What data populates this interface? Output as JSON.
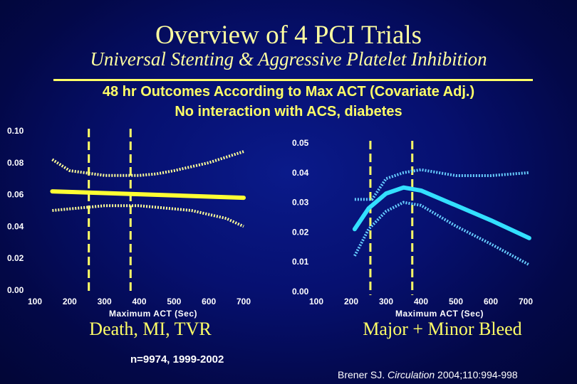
{
  "title": "Overview of 4 PCI Trials",
  "subtitle": "Universal Stenting & Aggressive Platelet Inhibition",
  "header_line1": "48 hr Outcomes According to Max ACT (Covariate Adj.)",
  "header_line2": "No interaction with ACS, diabetes",
  "footnote": "n=9974, 1999-2002",
  "citation": {
    "pre": "Brener SJ. ",
    "journal": "Circulation",
    "post": " 2004;110:994-998"
  },
  "colors": {
    "title": "#ffffa0",
    "heading": "#ffff66",
    "left_estimate": "#ffff33",
    "left_ci": "#ffff99",
    "right_estimate": "#33e0ff",
    "right_ci": "#66ccff",
    "reference_line": "#ffff66"
  },
  "chart_data": [
    {
      "type": "line",
      "caption": "Death, MI, TVR",
      "xlabel": "Maximum ACT (Sec)",
      "ylabel": "",
      "xlim": [
        100,
        700
      ],
      "ylim": [
        0,
        0.1
      ],
      "x_ticks": [
        "100",
        "200",
        "300",
        "400",
        "500",
        "600",
        "700"
      ],
      "y_ticks": [
        "0.00",
        "0.02",
        "0.04",
        "0.06",
        "0.08",
        "0.10"
      ],
      "reference_lines_x": [
        255,
        375
      ],
      "series": [
        {
          "role": "estimate",
          "x": [
            150,
            700
          ],
          "y": [
            0.062,
            0.058
          ]
        },
        {
          "role": "upper_ci",
          "x": [
            150,
            200,
            300,
            400,
            450,
            500,
            600,
            700
          ],
          "y": [
            0.082,
            0.075,
            0.072,
            0.072,
            0.073,
            0.075,
            0.08,
            0.087
          ]
        },
        {
          "role": "lower_ci",
          "x": [
            150,
            250,
            300,
            400,
            450,
            550,
            650,
            700
          ],
          "y": [
            0.05,
            0.052,
            0.053,
            0.053,
            0.052,
            0.05,
            0.045,
            0.04
          ]
        }
      ]
    },
    {
      "type": "line",
      "caption": "Major + Minor Bleed",
      "xlabel": "Maximum ACT (Sec)",
      "ylabel": "",
      "xlim": [
        100,
        700
      ],
      "ylim": [
        0,
        0.05
      ],
      "x_ticks": [
        "100",
        "200",
        "300",
        "400",
        "500",
        "600",
        "700"
      ],
      "y_ticks": [
        "0.00",
        "0.01",
        "0.02",
        "0.03",
        "0.04",
        "0.05"
      ],
      "reference_lines_x": [
        255,
        375
      ],
      "series": [
        {
          "role": "estimate",
          "x": [
            210,
            250,
            300,
            350,
            400,
            500,
            600,
            710
          ],
          "y": [
            0.021,
            0.028,
            0.033,
            0.035,
            0.034,
            0.029,
            0.024,
            0.018
          ]
        },
        {
          "role": "upper_ci",
          "x": [
            210,
            260,
            300,
            350,
            400,
            500,
            600,
            710
          ],
          "y": [
            0.031,
            0.031,
            0.038,
            0.04,
            0.041,
            0.039,
            0.039,
            0.04
          ]
        },
        {
          "role": "lower_ci",
          "x": [
            210,
            250,
            300,
            350,
            400,
            500,
            600,
            710
          ],
          "y": [
            0.012,
            0.021,
            0.027,
            0.03,
            0.029,
            0.022,
            0.016,
            0.009
          ]
        }
      ]
    }
  ]
}
